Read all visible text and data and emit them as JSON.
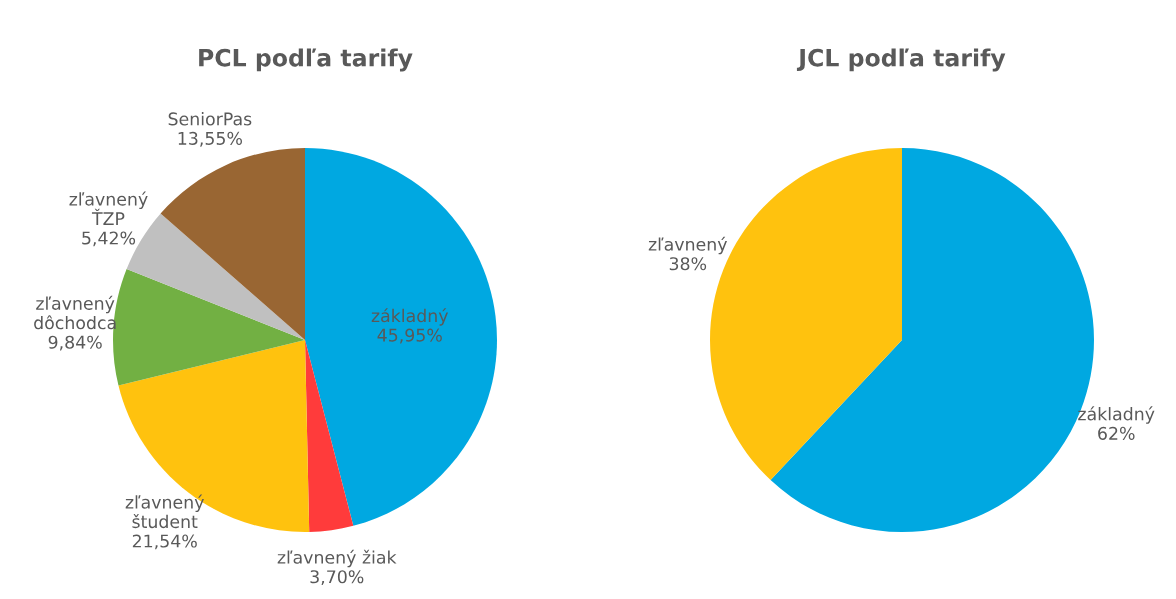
{
  "chart_data": [
    {
      "type": "pie",
      "title": "PCL podľa tarify",
      "categories": [
        "základný",
        "zľavnený žiak",
        "zľavnený\nštudent",
        "zľavnený\ndôchodca",
        "zľavnený\nŤZP",
        "SeniorPas"
      ],
      "values": [
        45.95,
        3.7,
        21.54,
        9.84,
        5.42,
        13.55
      ],
      "value_labels": [
        "45,95%",
        "3,70%",
        "21,54%",
        "9,84%",
        "5,42%",
        "13,55%"
      ],
      "colors": [
        "#00a8e1",
        "#ff3b3b",
        "#ffc20e",
        "#72b043",
        "#c0c0c0",
        "#996633"
      ]
    },
    {
      "type": "pie",
      "title": "JCL podľa tarify",
      "categories": [
        "základný",
        "zľavnený"
      ],
      "values": [
        62,
        38
      ],
      "value_labels": [
        "62%",
        "38%"
      ],
      "colors": [
        "#00a8e1",
        "#ffc20e"
      ]
    }
  ]
}
